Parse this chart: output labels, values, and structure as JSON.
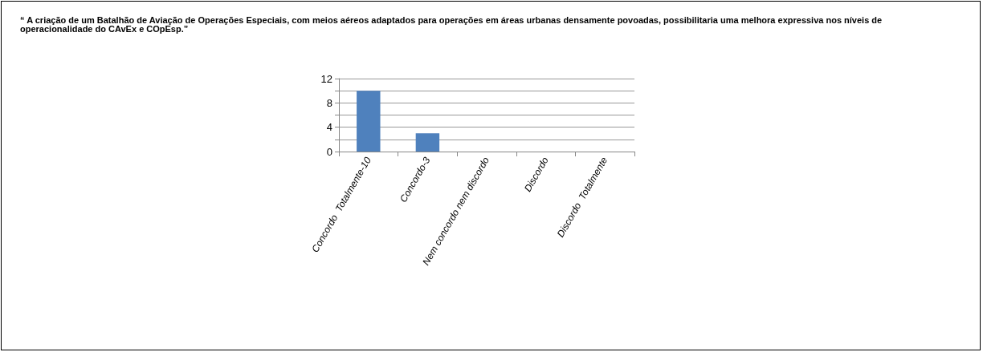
{
  "chart_data": {
    "type": "bar",
    "title": "“ A criação de um Batalhão de Aviação de Operações Especiais, com meios aéreos adaptados para operações em áreas urbanas densamente povoadas, possibilitaria uma melhora expressiva nos níveis de operacionalidade do CAvEx e COpEsp.”",
    "categories": [
      "Concordo  Totalmente-10",
      "Concordo-3",
      "Nem concordo nem discordo",
      "Discordo",
      "Discordo  Totalmente"
    ],
    "values": [
      10,
      3,
      0,
      0,
      0
    ],
    "color": "#4f81bd",
    "ylim": [
      0,
      12
    ],
    "yticks": [
      0,
      {
        "value": 2,
        "label": null
      },
      4,
      {
        "value": 6,
        "label": null
      },
      8,
      {
        "value": 10,
        "label": null
      },
      12
    ],
    "grid": "y"
  }
}
